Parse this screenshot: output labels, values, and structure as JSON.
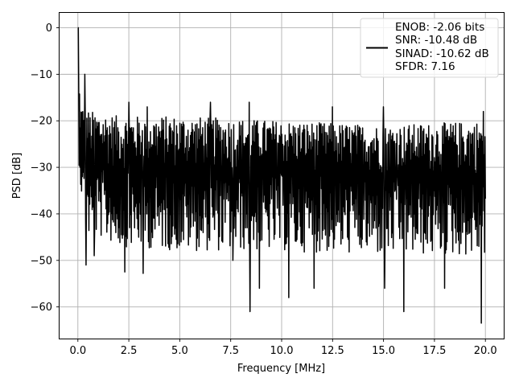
{
  "chart_data": {
    "type": "line",
    "xlabel": "Frequency [MHz]",
    "ylabel": "PSD [dB]",
    "xlim": [
      -0.9,
      20.9
    ],
    "ylim": [
      -66.8,
      3.2
    ],
    "xticks": [
      0.0,
      2.5,
      5.0,
      7.5,
      10.0,
      12.5,
      15.0,
      17.5,
      20.0
    ],
    "xtick_labels": [
      "0.0",
      "2.5",
      "5.0",
      "7.5",
      "10.0",
      "12.5",
      "15.0",
      "17.5",
      "20.0"
    ],
    "yticks": [
      0,
      -10,
      -20,
      -30,
      -40,
      -50,
      -60
    ],
    "ytick_labels": [
      "0",
      "−10",
      "−20",
      "−30",
      "−40",
      "−50",
      "−60"
    ],
    "grid": true,
    "legend_position": "top-right",
    "series": [
      {
        "name": "ENOB: -2.06 bits\nSNR: -10.48 dB\nSINAD: -10.62 dB\nSFDR: 7.16",
        "legend_lines": [
          "ENOB: -2.06 bits",
          "SNR: -10.48 dB",
          "SINAD: -10.62 dB",
          "SFDR: 7.16"
        ],
        "color": "#000000",
        "x_start": 0.0,
        "x_end": 20.0,
        "num_points": 1000,
        "envelope": {
          "x": [
            0.0,
            0.05,
            0.15,
            0.3,
            0.6,
            1.0,
            2.0,
            5.0,
            10.0,
            15.0,
            20.0
          ],
          "upper": [
            0.0,
            -10,
            -16,
            -17,
            -18,
            -18,
            -19,
            -19,
            -20,
            -21,
            -20
          ],
          "lower": [
            -8,
            -29,
            -35,
            -42,
            -46,
            -45,
            -47,
            -48,
            -48,
            -49,
            -49
          ],
          "median": [
            -6,
            -22,
            -27,
            -28,
            -30,
            -30,
            -31,
            -31,
            -31,
            -32,
            -32
          ]
        },
        "peaks": [
          {
            "x": 0.0,
            "y": 0
          },
          {
            "x": 0.35,
            "y": -10
          },
          {
            "x": 2.5,
            "y": -16
          },
          {
            "x": 3.4,
            "y": -17
          },
          {
            "x": 6.5,
            "y": -16
          },
          {
            "x": 8.4,
            "y": -16
          },
          {
            "x": 12.5,
            "y": -17
          },
          {
            "x": 15.0,
            "y": -17
          },
          {
            "x": 19.9,
            "y": -18
          }
        ],
        "dips": [
          {
            "x": 0.4,
            "y": -51
          },
          {
            "x": 0.8,
            "y": -49
          },
          {
            "x": 2.3,
            "y": -52.5
          },
          {
            "x": 3.2,
            "y": -52.8
          },
          {
            "x": 7.6,
            "y": -50
          },
          {
            "x": 8.45,
            "y": -61
          },
          {
            "x": 8.9,
            "y": -56
          },
          {
            "x": 10.35,
            "y": -58
          },
          {
            "x": 11.6,
            "y": -56
          },
          {
            "x": 15.05,
            "y": -56
          },
          {
            "x": 16.0,
            "y": -61
          },
          {
            "x": 18.0,
            "y": -56
          },
          {
            "x": 19.8,
            "y": -63.5
          }
        ]
      }
    ]
  }
}
